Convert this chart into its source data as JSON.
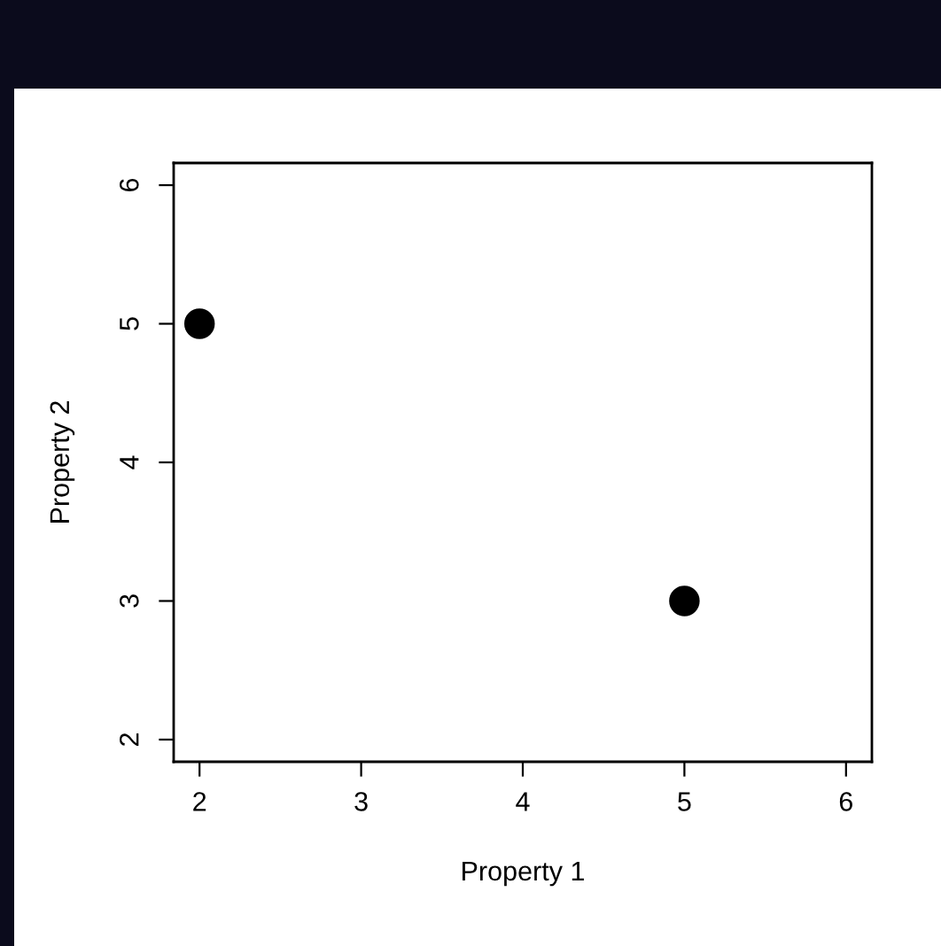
{
  "chart_data": {
    "type": "scatter",
    "xlabel": "Property 1",
    "ylabel": "Property 2",
    "x": [
      2,
      5
    ],
    "series": [
      {
        "color": "#000000",
        "values": [
          5,
          3
        ]
      }
    ],
    "xlim": [
      1.84,
      6.16
    ],
    "ylim": [
      1.84,
      6.16
    ],
    "xticks": [
      2,
      3,
      4,
      5,
      6
    ],
    "yticks": [
      2,
      3,
      4,
      5,
      6
    ],
    "grid": false,
    "legend": false,
    "marker": "circle"
  }
}
